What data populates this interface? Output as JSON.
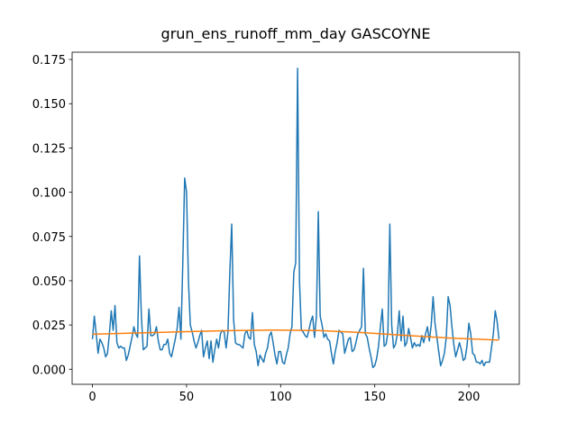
{
  "chart_data": {
    "type": "line",
    "title": "grun_ens_runoff_mm_day GASCOYNE",
    "x": [
      0,
      1,
      2,
      3,
      4,
      5,
      6,
      7,
      8,
      9,
      10,
      11,
      12,
      13,
      14,
      15,
      16,
      17,
      18,
      19,
      20,
      21,
      22,
      23,
      24,
      25,
      26,
      27,
      28,
      29,
      30,
      31,
      32,
      33,
      34,
      35,
      36,
      37,
      38,
      39,
      40,
      41,
      42,
      43,
      44,
      45,
      46,
      47,
      48,
      49,
      50,
      51,
      52,
      53,
      54,
      55,
      56,
      57,
      58,
      59,
      60,
      61,
      62,
      63,
      64,
      65,
      66,
      67,
      68,
      69,
      70,
      71,
      72,
      73,
      74,
      75,
      76,
      77,
      78,
      79,
      80,
      81,
      82,
      83,
      84,
      85,
      86,
      87,
      88,
      89,
      90,
      91,
      92,
      93,
      94,
      95,
      96,
      97,
      98,
      99,
      100,
      101,
      102,
      103,
      104,
      105,
      106,
      107,
      108,
      109,
      110,
      111,
      112,
      113,
      114,
      115,
      116,
      117,
      118,
      119,
      120,
      121,
      122,
      123,
      124,
      125,
      126,
      127,
      128,
      129,
      130,
      131,
      132,
      133,
      134,
      135,
      136,
      137,
      138,
      139,
      140,
      141,
      142,
      143,
      144,
      145,
      146,
      147,
      148,
      149,
      150,
      151,
      152,
      153,
      154,
      155,
      156,
      157,
      158,
      159,
      160,
      161,
      162,
      163,
      164,
      165,
      166,
      167,
      168,
      169,
      170,
      171,
      172,
      173,
      174,
      175,
      176,
      177,
      178,
      179,
      180,
      181,
      182,
      183,
      184,
      185,
      186,
      187,
      188,
      189,
      190,
      191,
      192,
      193,
      194,
      195,
      196,
      197,
      198,
      199,
      200,
      201,
      202,
      203,
      204,
      205,
      206,
      207,
      208,
      209,
      210,
      211,
      212,
      213,
      214,
      215,
      216
    ],
    "series": [
      {
        "color": "#1f77b4",
        "values": [
          0.017,
          0.03,
          0.02,
          0.009,
          0.017,
          0.015,
          0.012,
          0.007,
          0.009,
          0.02,
          0.033,
          0.022,
          0.036,
          0.015,
          0.012,
          0.013,
          0.012,
          0.012,
          0.005,
          0.008,
          0.013,
          0.018,
          0.024,
          0.02,
          0.018,
          0.064,
          0.03,
          0.011,
          0.012,
          0.013,
          0.034,
          0.019,
          0.019,
          0.02,
          0.024,
          0.016,
          0.011,
          0.011,
          0.014,
          0.014,
          0.017,
          0.009,
          0.007,
          0.012,
          0.017,
          0.023,
          0.035,
          0.017,
          0.06,
          0.108,
          0.1,
          0.05,
          0.025,
          0.021,
          0.016,
          0.012,
          0.015,
          0.019,
          0.022,
          0.007,
          0.012,
          0.016,
          0.006,
          0.016,
          0.004,
          0.011,
          0.017,
          0.012,
          0.02,
          0.022,
          0.021,
          0.012,
          0.021,
          0.055,
          0.082,
          0.028,
          0.015,
          0.014,
          0.014,
          0.013,
          0.012,
          0.02,
          0.022,
          0.018,
          0.017,
          0.032,
          0.014,
          0.01,
          0.002,
          0.008,
          0.006,
          0.004,
          0.009,
          0.012,
          0.019,
          0.021,
          0.015,
          0.008,
          0.003,
          0.01,
          0.01,
          0.004,
          0.003,
          0.008,
          0.012,
          0.02,
          0.024,
          0.055,
          0.06,
          0.17,
          0.05,
          0.022,
          0.021,
          0.019,
          0.018,
          0.022,
          0.027,
          0.03,
          0.018,
          0.03,
          0.089,
          0.03,
          0.025,
          0.018,
          0.02,
          0.017,
          0.016,
          0.009,
          0.003,
          0.01,
          0.015,
          0.022,
          0.021,
          0.02,
          0.009,
          0.013,
          0.017,
          0.018,
          0.01,
          0.011,
          0.015,
          0.02,
          0.022,
          0.024,
          0.057,
          0.02,
          0.018,
          0.012,
          0.007,
          0.001,
          0.002,
          0.006,
          0.013,
          0.024,
          0.034,
          0.013,
          0.014,
          0.021,
          0.082,
          0.025,
          0.012,
          0.014,
          0.02,
          0.033,
          0.016,
          0.03,
          0.013,
          0.015,
          0.023,
          0.018,
          0.012,
          0.015,
          0.013,
          0.014,
          0.013,
          0.019,
          0.015,
          0.02,
          0.024,
          0.016,
          0.025,
          0.041,
          0.026,
          0.018,
          0.01,
          0.002,
          0.005,
          0.009,
          0.018,
          0.041,
          0.036,
          0.024,
          0.014,
          0.007,
          0.011,
          0.015,
          0.011,
          0.005,
          0.006,
          0.013,
          0.026,
          0.02,
          0.009,
          0.008,
          0.004,
          0.004,
          0.003,
          0.005,
          0.002,
          0.004,
          0.004,
          0.004,
          0.012,
          0.02,
          0.033,
          0.027,
          0.017
        ]
      },
      {
        "color": "#ff7f0e",
        "x": [
          0,
          24,
          48,
          72,
          96,
          120,
          144,
          168,
          192,
          216
        ],
        "values": [
          0.0198,
          0.0205,
          0.0212,
          0.0218,
          0.0221,
          0.0219,
          0.0207,
          0.019,
          0.0175,
          0.0165
        ]
      }
    ],
    "xlim": [
      -10.8,
      226.8
    ],
    "ylim": [
      -0.0085,
      0.1791
    ],
    "xticks": [
      0,
      50,
      100,
      150,
      200
    ],
    "yticks": [
      {
        "value": 0,
        "label": "0.000"
      },
      {
        "value": 0.025,
        "label": "0.025"
      },
      {
        "value": 0.05,
        "label": "0.050"
      },
      {
        "value": 0.075,
        "label": "0.075"
      },
      {
        "value": 0.1,
        "label": "0.100"
      },
      {
        "value": 0.125,
        "label": "0.125"
      },
      {
        "value": 0.15,
        "label": "0.150"
      },
      {
        "value": 0.175,
        "label": "0.175"
      }
    ]
  }
}
